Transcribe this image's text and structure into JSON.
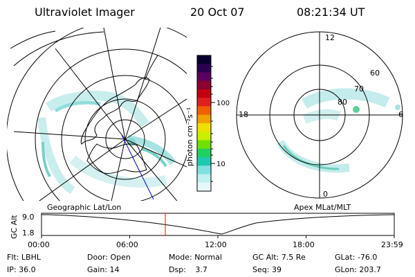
{
  "header": {
    "instrument": "Ultraviolet Imager",
    "date": "20 Oct 07",
    "time": "08:21:34 UT"
  },
  "geo_panel": {
    "label": "Geographic Lat/Lon"
  },
  "apex_panel": {
    "label": "Apex MLat/MLT",
    "mlt_labels": [
      "12",
      "18",
      "6",
      "0"
    ],
    "lat_labels": [
      "60",
      "70",
      "80"
    ]
  },
  "colorbar": {
    "unit_label": "photon cm⁻²s⁻¹",
    "ticks": [
      "100",
      "10"
    ],
    "colors": [
      "#0a0030",
      "#2a0050",
      "#5a0060",
      "#8a0030",
      "#c00010",
      "#e02020",
      "#f06000",
      "#f0a000",
      "#f0e000",
      "#c8f000",
      "#70e000",
      "#20d060",
      "#20c8b0",
      "#80e0e0",
      "#c0f0f0",
      "#e8f8f8"
    ]
  },
  "timeline": {
    "ylabel": "GC Alt",
    "ymax_label": "9.0",
    "ymin_label": "1.8",
    "ticks": [
      "00:00",
      "06:00",
      "12:00",
      "18:00",
      "23:59"
    ],
    "current_time_fraction": 0.351
  },
  "info": {
    "row1": [
      {
        "label": "Flt:",
        "value": "LBHL"
      },
      {
        "label": "Door:",
        "value": "Open"
      },
      {
        "label": "Mode:",
        "value": "Normal"
      },
      {
        "label": "GC Alt:",
        "value": "7.5 Re"
      },
      {
        "label": "GLat:",
        "value": "-76.0"
      }
    ],
    "row2": [
      {
        "label": "IP:",
        "value": "36.0"
      },
      {
        "label": "Gain:",
        "value": "14"
      },
      {
        "label": "Dsp:",
        "value": "3.7"
      },
      {
        "label": "Seq:",
        "value": "39"
      },
      {
        "label": "GLon:",
        "value": "203.7"
      }
    ]
  }
}
